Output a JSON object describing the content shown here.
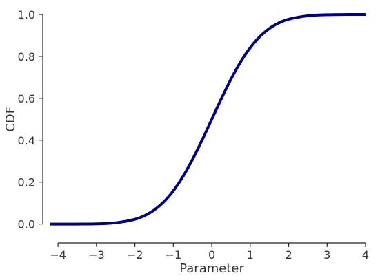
{
  "chart_data": {
    "type": "line",
    "title": "",
    "xlabel": "Parameter",
    "ylabel": "CDF",
    "xlim": [
      -4.2,
      4.0
    ],
    "ylim": [
      -0.08,
      1.0
    ],
    "xticks": [
      -4,
      -3,
      -2,
      -1,
      0,
      1,
      2,
      3,
      4
    ],
    "xtick_labels": [
      "−4",
      "−3",
      "−2",
      "−1",
      "0",
      "1",
      "2",
      "3",
      "4"
    ],
    "yticks": [
      0.0,
      0.2,
      0.4,
      0.6,
      0.8,
      1.0
    ],
    "ytick_labels": [
      "0.0",
      "0.2",
      "0.4",
      "0.6",
      "0.8",
      "1.0"
    ],
    "grid": false,
    "series": [
      {
        "color": "#000080",
        "x": [
          -4.2,
          -4.0,
          -3.5,
          -3.0,
          -2.5,
          -2.0,
          -1.75,
          -1.5,
          -1.25,
          -1.0,
          -0.75,
          -0.5,
          -0.25,
          0.0,
          0.25,
          0.5,
          0.75,
          1.0,
          1.25,
          1.5,
          1.75,
          2.0,
          2.5,
          3.0,
          3.5,
          4.0
        ],
        "y": [
          0.0,
          0.0,
          0.0002,
          0.0013,
          0.0062,
          0.0228,
          0.0401,
          0.0668,
          0.1056,
          0.1587,
          0.2266,
          0.3085,
          0.4013,
          0.5,
          0.5987,
          0.6915,
          0.7734,
          0.8413,
          0.8944,
          0.9332,
          0.9599,
          0.9772,
          0.9938,
          0.9987,
          0.9998,
          1.0
        ]
      }
    ]
  }
}
